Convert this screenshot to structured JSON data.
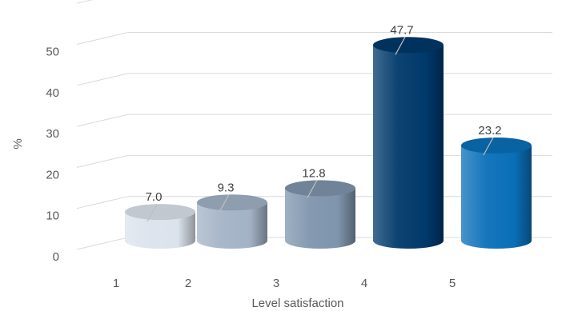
{
  "chart_data": {
    "type": "bar",
    "style": "3d-cylinder",
    "categories": [
      "1",
      "2",
      "3",
      "4",
      "5"
    ],
    "values": [
      7.0,
      9.3,
      12.8,
      47.7,
      23.2
    ],
    "data_labels": [
      "7.0",
      "9.3",
      "12.8",
      "47.7",
      "23.2"
    ],
    "yticks": [
      "0",
      "10",
      "20",
      "30",
      "40",
      "50"
    ],
    "ylim": [
      0,
      60
    ],
    "xlabel": "Level satisfaction",
    "ylabel": "%",
    "grid": true,
    "legend": "none",
    "colors": [
      "#dbe3ec",
      "#a3b3c6",
      "#7f95ad",
      "#00396b",
      "#0a6fb8"
    ]
  }
}
